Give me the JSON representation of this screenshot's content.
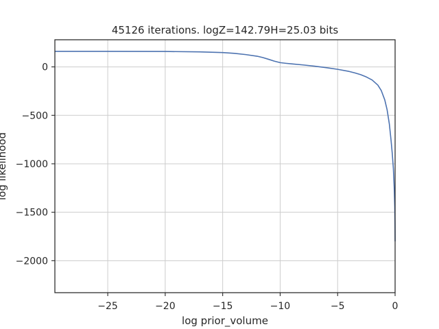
{
  "chart_data": {
    "type": "line",
    "title": "45126 iterations. logZ=142.79H=25.03 bits",
    "xlabel": "log prior_volume",
    "ylabel": "log likelihood",
    "xlim": [
      -29.6,
      0
    ],
    "ylim": [
      -2330,
      280
    ],
    "grid": true,
    "xticks": [
      -25,
      -20,
      -15,
      -10,
      -5,
      0
    ],
    "xtick_labels": [
      "−25",
      "−20",
      "−15",
      "−10",
      "−5",
      "0"
    ],
    "yticks": [
      0,
      -500,
      -1000,
      -1500,
      -2000
    ],
    "ytick_labels": [
      "0",
      "−500",
      "−1000",
      "−1500",
      "−2000"
    ],
    "series": [
      {
        "color": "#4c72b0",
        "x": [
          -29.6,
          -25,
          -20,
          -17,
          -15,
          -14,
          -13,
          -12,
          -11.5,
          -11,
          -10.5,
          -10,
          -9.5,
          -9,
          -8,
          -7,
          -6,
          -5,
          -4,
          -3.5,
          -3,
          -2.5,
          -2,
          -1.5,
          -1.2,
          -0.9,
          -0.7,
          -0.5,
          -0.35,
          -0.25,
          -0.15,
          -0.08,
          -0.03,
          -0.01,
          0
        ],
        "y": [
          160,
          160,
          159,
          155,
          148,
          140,
          127,
          110,
          96,
          78,
          59,
          44,
          37,
          31,
          20,
          7,
          -8,
          -25,
          -47,
          -62,
          -80,
          -104,
          -135,
          -188,
          -245,
          -340,
          -440,
          -590,
          -760,
          -890,
          -1050,
          -1240,
          -1440,
          -1620,
          -1800
        ]
      }
    ]
  }
}
